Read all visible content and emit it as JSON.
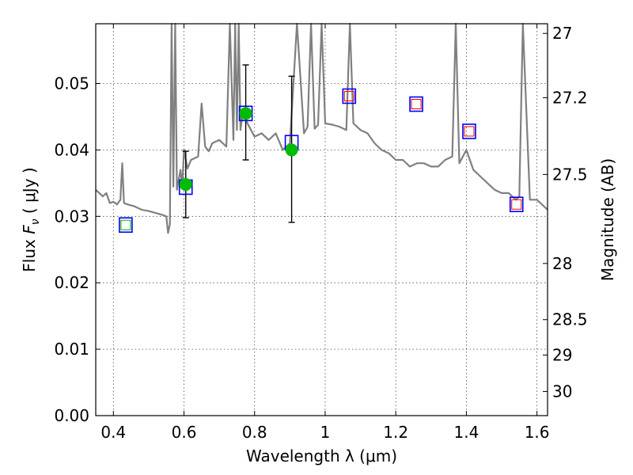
{
  "chart_data": {
    "type": "scatter",
    "xlabel": "Wavelength  λ (μm)",
    "ylabel": "Flux  F_ν  ( μJy )",
    "ylabel_parts": {
      "pre": "Flux  ",
      "sym": "F",
      "sub": "ν",
      "post": "  ( μJy )"
    },
    "y2label": "Magnitude (AB)",
    "xlim": [
      0.35,
      1.63
    ],
    "ylim": [
      0.0,
      0.059
    ],
    "grid": true,
    "x_ticks": [
      0.4,
      0.6,
      0.8,
      1.0,
      1.2,
      1.4,
      1.6
    ],
    "x_tick_labels": [
      "0.4",
      "0.6",
      "0.8",
      "1",
      "1.2",
      "1.4",
      "1.6"
    ],
    "y_ticks": [
      0.0,
      0.01,
      0.02,
      0.03,
      0.04,
      0.05
    ],
    "y_tick_labels": [
      "0.00",
      "0.01",
      "0.02",
      "0.03",
      "0.04",
      "0.05"
    ],
    "y2_ticks": [
      27,
      27.2,
      27.5,
      28,
      28.5,
      29,
      30
    ],
    "y2_tick_labels": [
      "27",
      "27.2",
      "27.5",
      "28",
      "28.5",
      "29",
      "30"
    ],
    "series": [
      {
        "kind": "line",
        "color": "#808080",
        "x": [
          0.35,
          0.37,
          0.38,
          0.39,
          0.4,
          0.41,
          0.42,
          0.425,
          0.43,
          0.44,
          0.46,
          0.48,
          0.5,
          0.52,
          0.54,
          0.55,
          0.555,
          0.56,
          0.565,
          0.57,
          0.575,
          0.58,
          0.59,
          0.595,
          0.6,
          0.61,
          0.62,
          0.64,
          0.65,
          0.66,
          0.67,
          0.68,
          0.7,
          0.72,
          0.73,
          0.74,
          0.745,
          0.75,
          0.755,
          0.76,
          0.765,
          0.77,
          0.78,
          0.8,
          0.82,
          0.84,
          0.86,
          0.88,
          0.9,
          0.92,
          0.94,
          0.95,
          0.96,
          0.97,
          0.98,
          0.99,
          1.0,
          1.02,
          1.04,
          1.06,
          1.07,
          1.08,
          1.1,
          1.12,
          1.14,
          1.16,
          1.18,
          1.2,
          1.22,
          1.24,
          1.26,
          1.28,
          1.3,
          1.32,
          1.34,
          1.36,
          1.37,
          1.38,
          1.4,
          1.42,
          1.44,
          1.46,
          1.48,
          1.5,
          1.52,
          1.54,
          1.55,
          1.56,
          1.58,
          1.6,
          1.62,
          1.63
        ],
        "y": [
          0.034,
          0.033,
          0.0335,
          0.032,
          0.0322,
          0.0318,
          0.0325,
          0.038,
          0.032,
          0.0318,
          0.0315,
          0.031,
          0.0308,
          0.0305,
          0.0302,
          0.03,
          0.0275,
          0.0288,
          0.06,
          0.0345,
          0.06,
          0.034,
          0.037,
          0.0345,
          0.04,
          0.0372,
          0.0385,
          0.039,
          0.047,
          0.0405,
          0.0398,
          0.041,
          0.0415,
          0.0405,
          0.06,
          0.0415,
          0.06,
          0.043,
          0.06,
          0.043,
          0.045,
          0.0455,
          0.044,
          0.042,
          0.0425,
          0.0415,
          0.0425,
          0.04,
          0.041,
          0.06,
          0.0425,
          0.0435,
          0.06,
          0.0432,
          0.0438,
          0.06,
          0.044,
          0.0438,
          0.0435,
          0.043,
          0.06,
          0.044,
          0.043,
          0.0425,
          0.041,
          0.04,
          0.0395,
          0.0385,
          0.0385,
          0.0375,
          0.038,
          0.038,
          0.0375,
          0.0375,
          0.0385,
          0.039,
          0.06,
          0.038,
          0.04,
          0.037,
          0.036,
          0.035,
          0.034,
          0.0335,
          0.0335,
          0.0325,
          0.033,
          0.06,
          0.0325,
          0.0325,
          0.0315,
          0.031
        ]
      },
      {
        "kind": "open-square",
        "color": "#0000ff",
        "x": [
          0.435,
          0.605,
          0.775,
          0.905,
          1.068,
          1.258,
          1.408,
          1.542
        ],
        "y": [
          0.0287,
          0.0344,
          0.0455,
          0.0411,
          0.0481,
          0.0469,
          0.0428,
          0.0318
        ]
      },
      {
        "kind": "small-square",
        "color": "#ff0000",
        "x": [
          1.068,
          1.258,
          1.408,
          1.542
        ],
        "y": [
          0.0481,
          0.0469,
          0.0428,
          0.0318
        ]
      },
      {
        "kind": "small-square",
        "color": "#00aa00",
        "x": [
          0.435
        ],
        "y": [
          0.0287
        ]
      },
      {
        "kind": "filled-circle",
        "color": "#00bb00",
        "x": [
          0.605,
          0.775,
          0.905
        ],
        "y": [
          0.0348,
          0.0455,
          0.04
        ],
        "err_low": [
          0.0298,
          0.0385,
          0.0291
        ],
        "err_high": [
          0.0398,
          0.0528,
          0.0511
        ]
      }
    ]
  }
}
